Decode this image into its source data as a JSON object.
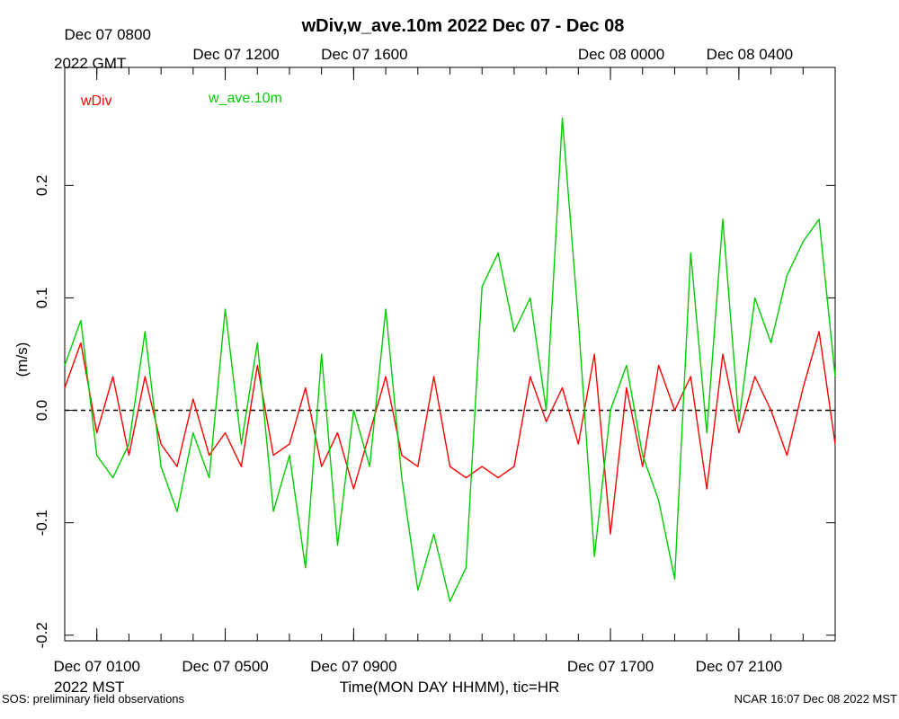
{
  "chart_data": {
    "type": "line",
    "title": "wDiv,w_ave.10m 2022 Dec 07 - Dec 08",
    "xlabel": "Time(MON DAY HHMM), tic=HR",
    "ylabel": "(m/s)",
    "ylim": [
      -0.205,
      0.305
    ],
    "xlim_hours_mst": [
      0.0,
      24.0
    ],
    "yticks": [
      -0.2,
      -0.1,
      0.0,
      0.1,
      0.2
    ],
    "ytick_labels": [
      "-0.2",
      "-0.1",
      "0.0",
      "0.1",
      "0.2"
    ],
    "bottom_ticks": [
      {
        "h": 1,
        "label": "Dec 07 0100"
      },
      {
        "h": 5,
        "label": "Dec 07 0500"
      },
      {
        "h": 9,
        "label": "Dec 07 0900"
      },
      {
        "h": 17,
        "label": "Dec 07 1700"
      },
      {
        "h": 21,
        "label": "Dec 07 2100"
      }
    ],
    "bottom_tz": "2022 MST",
    "top_ticks": [
      {
        "h": 1,
        "label": "Dec 07 0800"
      },
      {
        "h": 5,
        "label": "Dec 07 1200"
      },
      {
        "h": 9,
        "label": "Dec 07 1600"
      },
      {
        "h": 17,
        "label": "Dec 08 0000"
      },
      {
        "h": 21,
        "label": "Dec 08 0400"
      }
    ],
    "top_tz": "2022 GMT",
    "reference_line": 0.0,
    "series": [
      {
        "name": "wDiv",
        "color": "#ff0000",
        "x": [
          0,
          0.5,
          1,
          1.5,
          2,
          2.5,
          3,
          3.5,
          4,
          4.5,
          5,
          5.5,
          6,
          6.5,
          7,
          7.5,
          8,
          8.5,
          9,
          9.5,
          10,
          10.5,
          11,
          11.5,
          12,
          12.5,
          13,
          13.5,
          14,
          14.5,
          15,
          15.5,
          16,
          16.5,
          17,
          17.5,
          18,
          18.5,
          19,
          19.5,
          20,
          20.5,
          21,
          21.5,
          22,
          22.5,
          23,
          23.5,
          24
        ],
        "values": [
          0.02,
          0.06,
          -0.02,
          0.03,
          -0.04,
          0.03,
          -0.03,
          -0.05,
          0.01,
          -0.04,
          -0.02,
          -0.05,
          0.04,
          -0.04,
          -0.03,
          0.02,
          -0.05,
          -0.02,
          -0.07,
          -0.02,
          0.03,
          -0.04,
          -0.05,
          0.03,
          -0.05,
          -0.06,
          -0.05,
          -0.06,
          -0.05,
          0.03,
          -0.01,
          0.02,
          -0.03,
          0.05,
          -0.11,
          0.02,
          -0.05,
          0.04,
          0.0,
          0.03,
          -0.07,
          0.05,
          -0.02,
          0.03,
          0.0,
          -0.04,
          0.02,
          0.07,
          -0.03
        ]
      },
      {
        "name": "w_ave.10m",
        "color": "#00cc00",
        "x": [
          0,
          0.5,
          1,
          1.5,
          2,
          2.5,
          3,
          3.5,
          4,
          4.5,
          5,
          5.5,
          6,
          6.5,
          7,
          7.5,
          8,
          8.5,
          9,
          9.5,
          10,
          10.5,
          11,
          11.5,
          12,
          12.5,
          13,
          13.5,
          14,
          14.5,
          15,
          15.5,
          16,
          16.5,
          17,
          17.5,
          18,
          18.5,
          19,
          19.5,
          20,
          20.5,
          21,
          21.5,
          22,
          22.5,
          23,
          23.5,
          24
        ],
        "values": [
          0.04,
          0.08,
          -0.04,
          -0.06,
          -0.03,
          0.07,
          -0.05,
          -0.09,
          -0.02,
          -0.06,
          0.09,
          -0.03,
          0.06,
          -0.09,
          -0.04,
          -0.14,
          0.05,
          -0.12,
          0.0,
          -0.05,
          0.09,
          -0.06,
          -0.16,
          -0.11,
          -0.17,
          -0.14,
          0.11,
          0.14,
          0.07,
          0.1,
          0.0,
          0.26,
          0.08,
          -0.13,
          0.0,
          0.04,
          -0.04,
          -0.08,
          -0.15,
          0.14,
          -0.02,
          0.17,
          -0.01,
          0.1,
          0.06,
          0.12,
          0.15,
          0.17,
          0.03
        ]
      }
    ]
  },
  "legend": {
    "items": [
      {
        "label": "wDiv",
        "color": "#ff0000"
      },
      {
        "label": "w_ave.10m",
        "color": "#00cc00"
      }
    ]
  },
  "footer": {
    "left": "SOS: preliminary field observations",
    "right": "NCAR 16:07 Dec 08 2022 MST"
  }
}
